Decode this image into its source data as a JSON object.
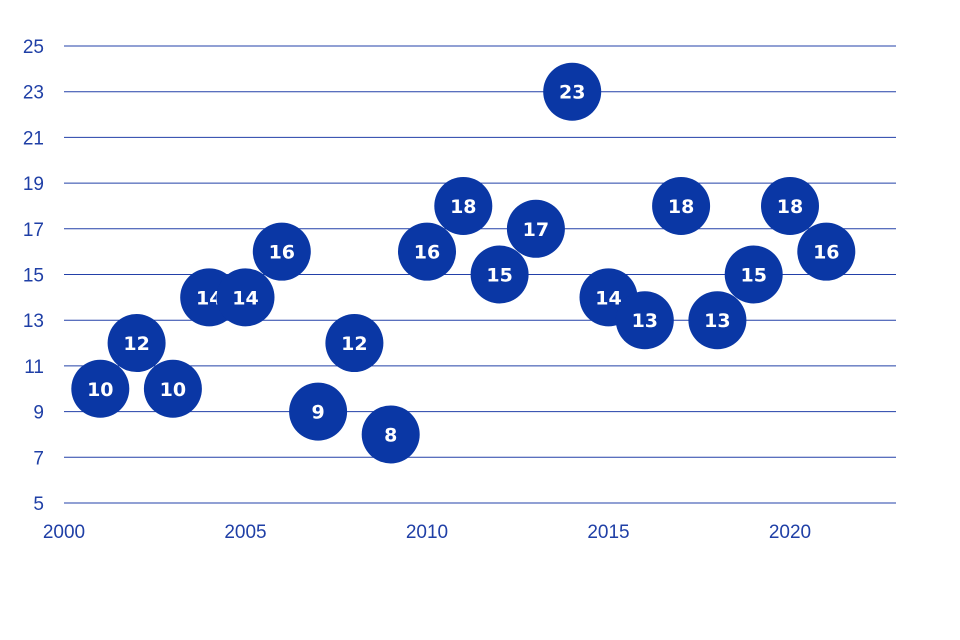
{
  "chart_data": {
    "type": "scatter",
    "title": "",
    "xlabel": "",
    "ylabel": "",
    "xlim": [
      2000,
      2023
    ],
    "ylim": [
      5,
      25
    ],
    "x_ticks": [
      2000,
      2005,
      2010,
      2015,
      2020
    ],
    "y_ticks": [
      5,
      7,
      9,
      11,
      13,
      15,
      17,
      19,
      21,
      23,
      25
    ],
    "grid": "horizontal",
    "colors": {
      "marker": "#0a37a5",
      "grid": "#2340a8",
      "tick_text": "#1f3fa6",
      "marker_text": "#ffffff"
    },
    "series": [
      {
        "x": [
          2001,
          2002,
          2003,
          2004,
          2005,
          2006,
          2007,
          2008,
          2009,
          2010,
          2011,
          2012,
          2013,
          2014,
          2015,
          2016,
          2017,
          2018,
          2019,
          2020,
          2021
        ],
        "y": [
          10,
          12,
          10,
          14,
          14,
          16,
          9,
          12,
          8,
          16,
          18,
          15,
          17,
          23,
          14,
          13,
          18,
          13,
          15,
          18,
          16
        ]
      }
    ]
  }
}
